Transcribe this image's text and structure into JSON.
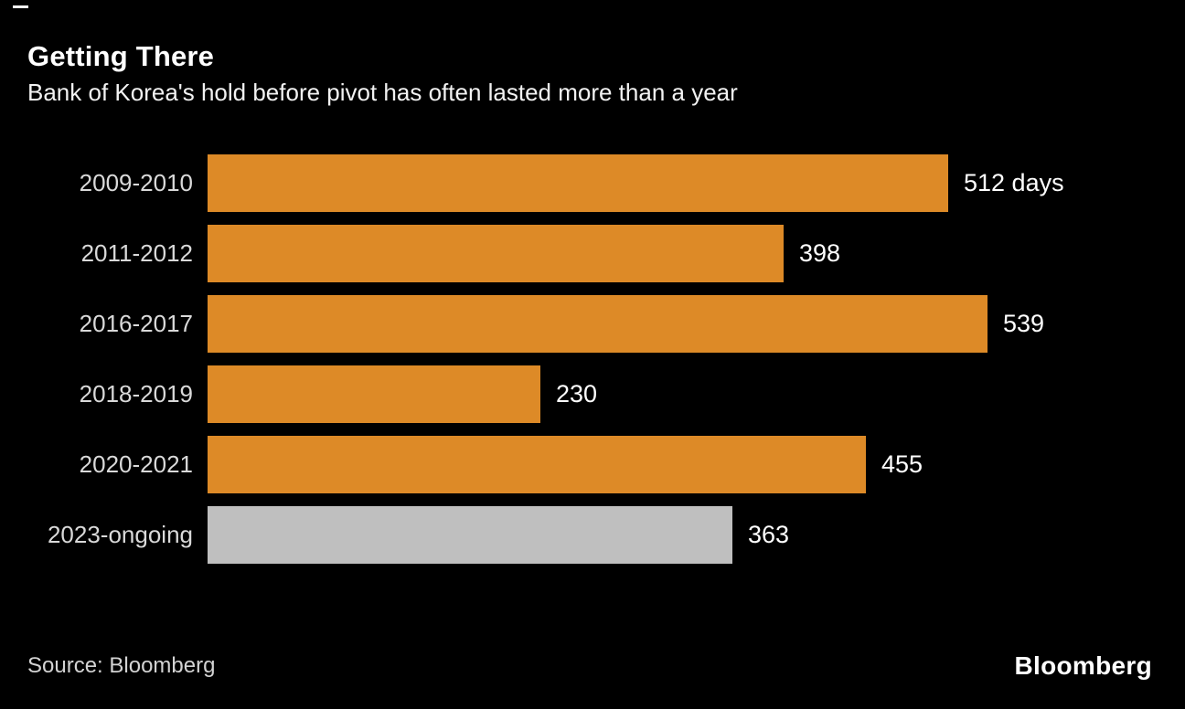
{
  "header": {
    "title": "Getting There",
    "subtitle": "Bank of Korea's hold before pivot has often lasted more than a year"
  },
  "chart_data": {
    "type": "bar",
    "orientation": "horizontal",
    "unit": "days",
    "categories": [
      "2009-2010",
      "2011-2012",
      "2016-2017",
      "2018-2019",
      "2020-2021",
      "2023-ongoing"
    ],
    "values": [
      512,
      398,
      539,
      230,
      455,
      363
    ],
    "value_labels": [
      "512 days",
      "398",
      "539",
      "230",
      "455",
      "363"
    ],
    "bar_colors": [
      "#DD8A27",
      "#DD8A27",
      "#DD8A27",
      "#DD8A27",
      "#DD8A27",
      "#BFBFBF"
    ],
    "xlim": [
      0,
      539
    ],
    "grid": false,
    "legend": "none",
    "title": "Getting There",
    "xlabel": "",
    "ylabel": ""
  },
  "footer": {
    "source": "Source: Bloomberg",
    "brand": "Bloomberg"
  },
  "colors": {
    "background": "#000000",
    "title_text": "#FFFFFF",
    "subtitle_text": "#F2F2F2",
    "category_label": "#D9D9D9",
    "value_label": "#FFFFFF",
    "bar_primary": "#DD8A27",
    "bar_muted": "#BFBFBF",
    "source_text": "#D3D3D3",
    "brand_text": "#FFFFFF"
  }
}
